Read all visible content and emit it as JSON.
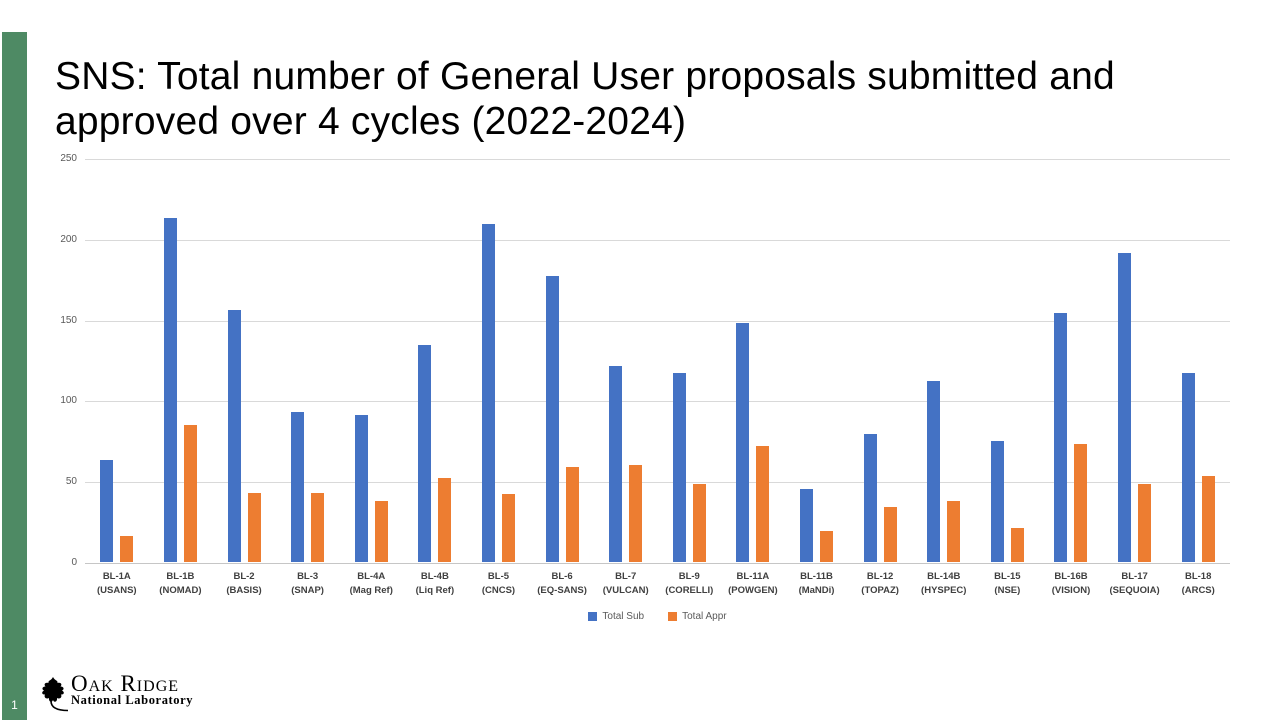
{
  "slide": {
    "number": "1",
    "title": "SNS: Total number of General User proposals submitted and approved over 4 cycles (2022-2024)",
    "accent_color": "#4e8a64"
  },
  "footer_logo": {
    "org": "Oak Ridge",
    "sub": "National Laboratory",
    "icon": "oak-leaf-icon"
  },
  "chart_data": {
    "type": "bar",
    "title": "",
    "xlabel": "",
    "ylabel": "",
    "ylim": [
      0,
      250
    ],
    "yticks": [
      0,
      50,
      100,
      150,
      200,
      250
    ],
    "grid": true,
    "legend_position": "bottom",
    "categories": [
      {
        "code": "BL-1A",
        "detail": "(USANS)"
      },
      {
        "code": "BL-1B",
        "detail": "(NOMAD)"
      },
      {
        "code": "BL-2",
        "detail": "(BASIS)"
      },
      {
        "code": "BL-3",
        "detail": "(SNAP)"
      },
      {
        "code": "BL-4A",
        "detail": "(Mag Ref)"
      },
      {
        "code": "BL-4B",
        "detail": "(Liq Ref)"
      },
      {
        "code": "BL-5",
        "detail": "(CNCS)"
      },
      {
        "code": "BL-6",
        "detail": "(EQ-SANS)"
      },
      {
        "code": "BL-7",
        "detail": "(VULCAN)"
      },
      {
        "code": "BL-9",
        "detail": "(CORELLI)"
      },
      {
        "code": "BL-11A",
        "detail": "(POWGEN)"
      },
      {
        "code": "BL-11B",
        "detail": "(MaNDi)"
      },
      {
        "code": "BL-12",
        "detail": "(TOPAZ)"
      },
      {
        "code": "BL-14B",
        "detail": "(HYSPEC)"
      },
      {
        "code": "BL-15",
        "detail": "(NSE)"
      },
      {
        "code": "BL-16B",
        "detail": "(VISION)"
      },
      {
        "code": "BL-17",
        "detail": "(SEQUOIA)"
      },
      {
        "code": "BL-18",
        "detail": "(ARCS)"
      }
    ],
    "series": [
      {
        "name": "Total Sub",
        "color": "#4472c4",
        "values": [
          63,
          213,
          156,
          93,
          91,
          134,
          209,
          177,
          121,
          117,
          148,
          45,
          79,
          112,
          75,
          154,
          191,
          117
        ]
      },
      {
        "name": "Total Appr",
        "color": "#ed7d31",
        "values": [
          16,
          85,
          43,
          43,
          38,
          52,
          42,
          59,
          60,
          48,
          72,
          19,
          34,
          38,
          21,
          73,
          48,
          53
        ]
      }
    ]
  }
}
